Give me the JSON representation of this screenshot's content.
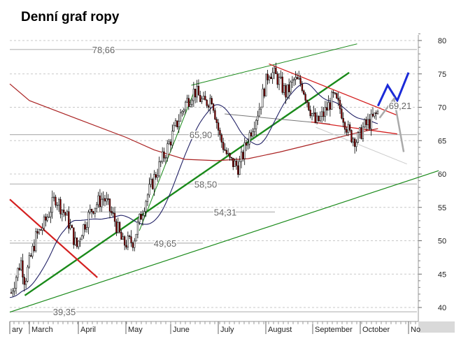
{
  "title": "Denní graf ropy",
  "chart_data": {
    "type": "candlestick",
    "y_axis": {
      "position": "right",
      "ticks": [
        40,
        45,
        50,
        55,
        60,
        65,
        70,
        75,
        80
      ],
      "ylim": [
        38.5,
        81.5
      ]
    },
    "x_axis": {
      "months": [
        "ary",
        "March",
        "April",
        "May",
        "June",
        "July",
        "August",
        "September",
        "October",
        "No"
      ]
    },
    "grid": "horizontal dashed",
    "support_resistance_levels": [
      {
        "label": "78,66",
        "value": 78.66
      },
      {
        "label": "65,90",
        "value": 65.9
      },
      {
        "label": "58,50",
        "value": 58.5
      },
      {
        "label": "54,31",
        "value": 54.31
      },
      {
        "label": "49,65",
        "value": 49.65
      },
      {
        "label": "39,35",
        "value": 39.35
      }
    ],
    "last_price_label": "69,21",
    "last_price": 69.21,
    "price_path": [
      {
        "date": "Feb 1",
        "price": 41.5
      },
      {
        "date": "Feb 10",
        "price": 44.5
      },
      {
        "date": "Feb 18",
        "price": 47.0
      },
      {
        "date": "Feb 24",
        "price": 44.0
      },
      {
        "date": "Mar 5",
        "price": 50.5
      },
      {
        "date": "Mar 10",
        "price": 52.5
      },
      {
        "date": "Mar 17",
        "price": 56.5
      },
      {
        "date": "Mar 24",
        "price": 53.5
      },
      {
        "date": "Mar 30",
        "price": 49.0
      },
      {
        "date": "Apr 3",
        "price": 51.5
      },
      {
        "date": "Apr 10",
        "price": 55.0
      },
      {
        "date": "Apr 17",
        "price": 56.5
      },
      {
        "date": "Apr 24",
        "price": 53.0
      },
      {
        "date": "Apr 29",
        "price": 49.5
      },
      {
        "date": "May 6",
        "price": 50.0
      },
      {
        "date": "May 14",
        "price": 56.0
      },
      {
        "date": "May 21",
        "price": 60.0
      },
      {
        "date": "May 28",
        "price": 63.5
      },
      {
        "date": "Jun 4",
        "price": 67.0
      },
      {
        "date": "Jun 10",
        "price": 70.5
      },
      {
        "date": "Jun 16",
        "price": 72.5
      },
      {
        "date": "Jun 22",
        "price": 70.5
      },
      {
        "date": "Jun 27",
        "price": 71.5
      },
      {
        "date": "Jul 2",
        "price": 65.5
      },
      {
        "date": "Jul 8",
        "price": 62.0
      },
      {
        "date": "Jul 14",
        "price": 61.0
      },
      {
        "date": "Jul 20",
        "price": 65.5
      },
      {
        "date": "Jul 27",
        "price": 70.0
      },
      {
        "date": "Aug 3",
        "price": 75.5
      },
      {
        "date": "Aug 8",
        "price": 74.5
      },
      {
        "date": "Aug 14",
        "price": 72.0
      },
      {
        "date": "Aug 19",
        "price": 74.0
      },
      {
        "date": "Aug 24",
        "price": 73.5
      },
      {
        "date": "Aug 29",
        "price": 70.0
      },
      {
        "date": "Sep 3",
        "price": 67.5
      },
      {
        "date": "Sep 8",
        "price": 69.0
      },
      {
        "date": "Sep 14",
        "price": 71.5
      },
      {
        "date": "Sep 19",
        "price": 69.5
      },
      {
        "date": "Sep 24",
        "price": 66.0
      },
      {
        "date": "Sep 29",
        "price": 65.0
      },
      {
        "date": "Oct 3",
        "price": 67.0
      },
      {
        "date": "Oct 8",
        "price": 68.0
      },
      {
        "date": "Oct 12",
        "price": 69.2
      }
    ],
    "overlays": [
      {
        "name": "",
        "kind": "moving average",
        "color": "#222266"
      },
      {
        "name": "",
        "kind": "moving average",
        "color": "#aa2222"
      }
    ]
  },
  "colors": {
    "candle_up": "#ffffff",
    "candle_down": "#8b0000",
    "trend_green": "#1a8a1a",
    "trend_red": "#d42020",
    "forecast_blue": "#1a2ad8",
    "forecast_gray": "#aaaaaa"
  }
}
